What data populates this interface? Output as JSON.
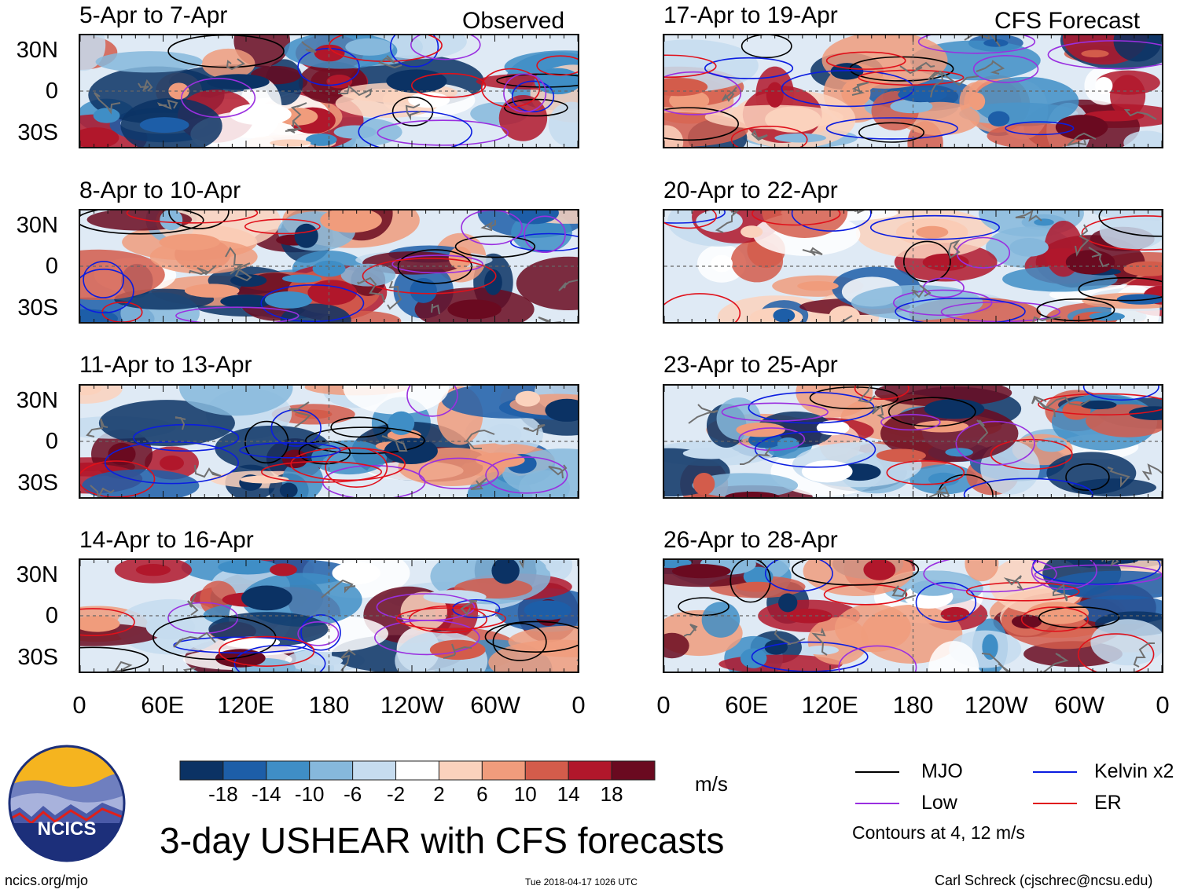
{
  "chart_data": {
    "type": "heatmap",
    "title": "3-day USHEAR with CFS forecasts",
    "columns": [
      {
        "header": "Observed",
        "panels": [
          "5-Apr to 7-Apr",
          "8-Apr to 10-Apr",
          "11-Apr to 13-Apr",
          "14-Apr to 16-Apr"
        ]
      },
      {
        "header": "CFS Forecast",
        "panels": [
          "17-Apr to 19-Apr",
          "20-Apr to 22-Apr",
          "23-Apr to 25-Apr",
          "26-Apr to 28-Apr"
        ]
      }
    ],
    "y_ticks": [
      "30N",
      "0",
      "30S"
    ],
    "x_ticks": [
      "0",
      "60E",
      "120E",
      "180",
      "120W",
      "60W",
      "0"
    ],
    "colorbar": {
      "unit": "m/s",
      "labels": [
        "-18",
        "-14",
        "-10",
        "-6",
        "-2",
        "2",
        "6",
        "10",
        "14",
        "18"
      ],
      "colors": [
        "#0b3264",
        "#1d5ea8",
        "#3f8ec6",
        "#86b8dc",
        "#c6dcef",
        "#ffffff",
        "#fbd2bd",
        "#f09c7c",
        "#d35c4b",
        "#b1172b",
        "#6a0a20"
      ]
    },
    "legend": [
      {
        "label": "MJO",
        "color": "#000000"
      },
      {
        "label": "Kelvin x2",
        "color": "#0b1de0"
      },
      {
        "label": "Low",
        "color": "#9a2fe0"
      },
      {
        "label": "ER",
        "color": "#e0101a"
      }
    ],
    "contour_note": "Contours at 4, 12 m/s"
  },
  "footer": {
    "left": "ncics.org/mjo",
    "center": "Tue 2018-04-17 1026 UTC",
    "right": "Carl Schreck (cjschrec@ncsu.edu)"
  },
  "logo": {
    "text": "NCICS"
  }
}
